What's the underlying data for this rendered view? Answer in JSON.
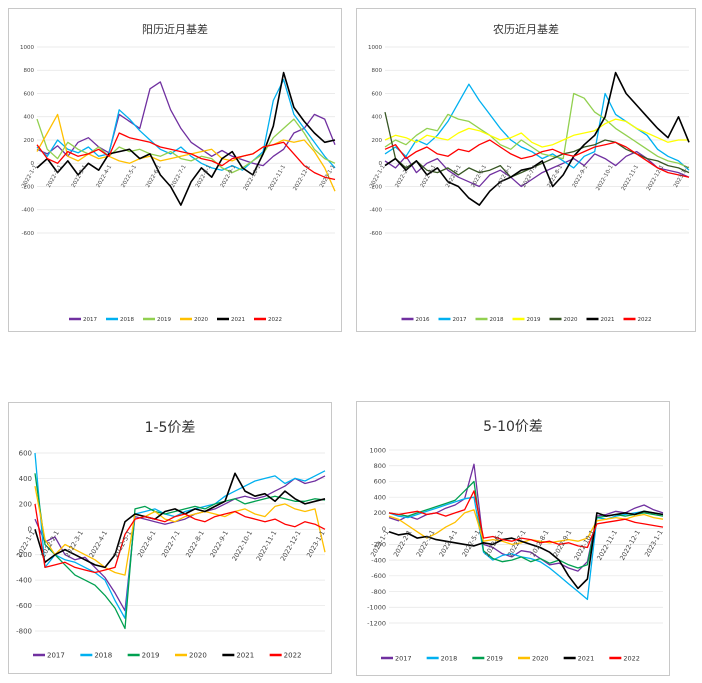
{
  "chart_data": [
    {
      "type": "line",
      "title": "阳历近月基差",
      "x_tick_labels": [
        "2022-1-1",
        "2022-2-1",
        "2022-3-1",
        "2022-4-1",
        "2022-5-1",
        "2022-6-1",
        "2022-7-1",
        "2022-8-1",
        "2022-9-1",
        "2022-10-1",
        "2022-11-1",
        "2022-12-1",
        "2023-1-1"
      ],
      "ylim": [
        -600,
        1000
      ],
      "y_ticks": [
        -600,
        -400,
        -200,
        0,
        200,
        400,
        600,
        800,
        1000
      ],
      "legend_position": "bottom",
      "series": [
        {
          "name": "2017",
          "color": "#7030a0",
          "values": [
            120,
            80,
            150,
            60,
            180,
            220,
            140,
            90,
            420,
            360,
            300,
            640,
            700,
            460,
            300,
            180,
            120,
            60,
            110,
            60,
            30,
            0,
            -20,
            60,
            120,
            260,
            300,
            420,
            380,
            160
          ]
        },
        {
          "name": "2018",
          "color": "#00b0f0",
          "values": [
            140,
            60,
            200,
            120,
            90,
            140,
            60,
            80,
            460,
            380,
            280,
            200,
            120,
            80,
            140,
            60,
            0,
            -40,
            -60,
            -20,
            -60,
            20,
            100,
            540,
            720,
            420,
            300,
            180,
            60,
            -40
          ]
        },
        {
          "name": "2019",
          "color": "#92d050",
          "values": [
            380,
            120,
            40,
            180,
            120,
            80,
            140,
            60,
            140,
            100,
            120,
            80,
            60,
            100,
            40,
            20,
            60,
            40,
            -40,
            -80,
            -40,
            20,
            80,
            220,
            300,
            380,
            260,
            120,
            40,
            0
          ]
        },
        {
          "name": "2020",
          "color": "#ffc000",
          "values": [
            100,
            260,
            420,
            60,
            20,
            80,
            40,
            60,
            20,
            0,
            40,
            60,
            20,
            40,
            60,
            80,
            100,
            120,
            40,
            20,
            60,
            80,
            140,
            160,
            200,
            180,
            200,
            100,
            -40,
            -240
          ]
        },
        {
          "name": "2021",
          "color": "#000000",
          "values": [
            -40,
            40,
            -80,
            20,
            -100,
            0,
            -60,
            80,
            100,
            120,
            40,
            80,
            -100,
            -200,
            -360,
            -160,
            -40,
            -120,
            40,
            100,
            -40,
            -100,
            80,
            320,
            780,
            480,
            360,
            260,
            180,
            200
          ]
        },
        {
          "name": "2022",
          "color": "#ff0000",
          "values": [
            160,
            40,
            0,
            100,
            60,
            80,
            120,
            60,
            260,
            220,
            200,
            180,
            140,
            120,
            100,
            80,
            40,
            20,
            -20,
            40,
            60,
            80,
            140,
            160,
            180,
            80,
            -20,
            -80,
            -120,
            -140
          ]
        }
      ]
    },
    {
      "type": "line",
      "title": "农历近月基差",
      "x_tick_labels": [
        "2022-1-1",
        "2022-2-1",
        "2022-3-1",
        "2022-4-1",
        "2022-5-1",
        "2022-6-1",
        "2022-7-1",
        "2022-8-1",
        "2022-9-1",
        "2022-10-1",
        "2022-11-1",
        "2022-12-1",
        "2023-1-1"
      ],
      "ylim": [
        -600,
        1000
      ],
      "y_ticks": [
        -600,
        -400,
        -200,
        0,
        200,
        400,
        600,
        800,
        1000
      ],
      "legend_position": "bottom",
      "series": [
        {
          "name": "2016",
          "color": "#7030a0",
          "values": [
            20,
            -40,
            60,
            -80,
            0,
            40,
            -60,
            -120,
            -160,
            -200,
            -100,
            -60,
            -120,
            -200,
            -140,
            -80,
            -40,
            0,
            40,
            -20,
            80,
            40,
            -20,
            60,
            100,
            40,
            -40,
            -60,
            -80,
            -120
          ]
        },
        {
          "name": "2017",
          "color": "#00b0f0",
          "values": [
            80,
            140,
            60,
            200,
            160,
            240,
            360,
            520,
            680,
            540,
            420,
            300,
            200,
            140,
            100,
            40,
            80,
            20,
            -40,
            60,
            100,
            600,
            420,
            360,
            300,
            240,
            120,
            60,
            20,
            -60
          ]
        },
        {
          "name": "2018",
          "color": "#92d050",
          "values": [
            140,
            200,
            160,
            240,
            300,
            280,
            420,
            380,
            360,
            300,
            240,
            160,
            120,
            200,
            140,
            80,
            60,
            40,
            600,
            560,
            440,
            380,
            300,
            240,
            180,
            120,
            60,
            20,
            0,
            -40
          ]
        },
        {
          "name": "2019",
          "color": "#ffff00",
          "values": [
            200,
            240,
            220,
            180,
            240,
            220,
            200,
            260,
            300,
            280,
            240,
            200,
            220,
            260,
            180,
            140,
            160,
            200,
            240,
            260,
            280,
            340,
            380,
            360,
            300,
            260,
            220,
            180,
            200,
            200
          ]
        },
        {
          "name": "2020",
          "color": "#375623",
          "values": [
            440,
            40,
            -40,
            20,
            -60,
            -80,
            -40,
            -100,
            -40,
            -80,
            -60,
            -20,
            -120,
            -80,
            -40,
            0,
            40,
            80,
            100,
            140,
            160,
            200,
            180,
            120,
            80,
            40,
            20,
            -20,
            -40,
            -80
          ]
        },
        {
          "name": "2021",
          "color": "#000000",
          "values": [
            -20,
            40,
            -60,
            20,
            -100,
            -40,
            -160,
            -200,
            -300,
            -360,
            -240,
            -160,
            -120,
            -60,
            -40,
            20,
            -200,
            -100,
            60,
            160,
            240,
            400,
            780,
            600,
            500,
            400,
            300,
            220,
            400,
            180
          ]
        },
        {
          "name": "2022",
          "color": "#ff0000",
          "values": [
            120,
            160,
            40,
            100,
            140,
            80,
            60,
            120,
            100,
            160,
            200,
            140,
            80,
            40,
            60,
            100,
            120,
            80,
            60,
            100,
            140,
            160,
            180,
            140,
            80,
            20,
            -40,
            -80,
            -100,
            -120
          ]
        }
      ]
    },
    {
      "type": "line",
      "title": "1-5价差",
      "x_tick_labels": [
        "2022-1-1",
        "2022-2-1",
        "2022-3-1",
        "2022-4-1",
        "2022-5-1",
        "2022-6-1",
        "2022-7-1",
        "2022-8-1",
        "2022-9-1",
        "2022-10-1",
        "2022-11-1",
        "2022-12-1",
        "2023-1-1"
      ],
      "ylim": [
        -800,
        600
      ],
      "y_ticks": [
        -800,
        -600,
        -400,
        -200,
        0,
        200,
        400,
        600
      ],
      "legend_position": "bottom",
      "series": [
        {
          "name": "2017",
          "color": "#7030a0",
          "values": [
            80,
            -100,
            -60,
            -200,
            -240,
            -220,
            -300,
            -380,
            -500,
            -640,
            100,
            80,
            60,
            40,
            60,
            80,
            120,
            140,
            160,
            200,
            240,
            260,
            240,
            260,
            300,
            340,
            400,
            360,
            380,
            420
          ]
        },
        {
          "name": "2018",
          "color": "#00b0f0",
          "values": [
            600,
            -300,
            -200,
            -240,
            -260,
            -300,
            -340,
            -400,
            -560,
            -700,
            120,
            140,
            160,
            120,
            100,
            140,
            160,
            180,
            200,
            260,
            300,
            340,
            380,
            400,
            420,
            360,
            400,
            380,
            420,
            460
          ]
        },
        {
          "name": "2019",
          "color": "#00a050",
          "values": [
            440,
            -120,
            -200,
            -280,
            -360,
            -400,
            -440,
            -520,
            -620,
            -780,
            160,
            180,
            140,
            120,
            140,
            160,
            180,
            160,
            200,
            220,
            240,
            200,
            220,
            240,
            260,
            240,
            220,
            220,
            240,
            230
          ]
        },
        {
          "name": "2020",
          "color": "#ffc000",
          "values": [
            340,
            -80,
            -200,
            -120,
            -160,
            -200,
            -240,
            -300,
            -340,
            -360,
            120,
            100,
            140,
            80,
            60,
            100,
            120,
            140,
            120,
            100,
            140,
            160,
            120,
            100,
            180,
            200,
            160,
            140,
            160,
            -180
          ]
        },
        {
          "name": "2021",
          "color": "#000000",
          "values": [
            0,
            -260,
            -200,
            -160,
            -200,
            -240,
            -280,
            -300,
            -200,
            60,
            120,
            100,
            80,
            140,
            160,
            120,
            160,
            140,
            180,
            220,
            440,
            300,
            260,
            280,
            220,
            300,
            240,
            200,
            220,
            240
          ]
        },
        {
          "name": "2022",
          "color": "#ff0000",
          "values": [
            200,
            -300,
            -280,
            -260,
            -300,
            -320,
            -340,
            -320,
            -300,
            -40,
            80,
            100,
            80,
            60,
            100,
            120,
            80,
            60,
            100,
            120,
            140,
            100,
            80,
            60,
            80,
            40,
            20,
            60,
            40,
            0
          ]
        }
      ]
    },
    {
      "type": "line",
      "title": "5-10价差",
      "x_tick_labels": [
        "2022-1-1",
        "2022-2-1",
        "2022-3-1",
        "2022-4-1",
        "2022-5-1",
        "2022-6-1",
        "2022-7-1",
        "2022-8-1",
        "2022-9-1",
        "2022-10-1",
        "2022-11-1",
        "2022-12-1",
        "2023-1-1"
      ],
      "ylim": [
        -1200,
        1000
      ],
      "y_ticks": [
        -1200,
        -1000,
        -800,
        -600,
        -400,
        -200,
        0,
        200,
        400,
        600,
        800,
        1000
      ],
      "legend_position": "bottom",
      "series": [
        {
          "name": "2017",
          "color": "#7030a0",
          "values": [
            140,
            100,
            160,
            120,
            180,
            200,
            260,
            300,
            380,
            820,
            -200,
            -240,
            -320,
            -360,
            -280,
            -300,
            -380,
            -460,
            -440,
            -500,
            -540,
            -420,
            160,
            180,
            220,
            200,
            260,
            300,
            240,
            200
          ]
        },
        {
          "name": "2018",
          "color": "#00b0f0",
          "values": [
            200,
            160,
            140,
            180,
            220,
            260,
            300,
            340,
            380,
            400,
            -300,
            -400,
            -340,
            -320,
            -360,
            -380,
            -420,
            -500,
            -600,
            -700,
            -800,
            -900,
            140,
            120,
            160,
            180,
            200,
            220,
            200,
            180
          ]
        },
        {
          "name": "2019",
          "color": "#00a050",
          "values": [
            200,
            180,
            160,
            200,
            240,
            280,
            320,
            360,
            480,
            600,
            -280,
            -380,
            -420,
            -400,
            -360,
            -420,
            -380,
            -440,
            -400,
            -460,
            -500,
            -460,
            140,
            160,
            180,
            160,
            180,
            200,
            180,
            160
          ]
        },
        {
          "name": "2020",
          "color": "#ffc000",
          "values": [
            160,
            120,
            40,
            -40,
            -120,
            -60,
            20,
            80,
            200,
            240,
            -160,
            -140,
            -160,
            -200,
            -180,
            -140,
            -160,
            -180,
            -160,
            -140,
            -160,
            -120,
            100,
            120,
            140,
            120,
            160,
            180,
            140,
            120
          ]
        },
        {
          "name": "2021",
          "color": "#000000",
          "values": [
            -40,
            -80,
            -60,
            -120,
            -100,
            -140,
            -160,
            -180,
            -200,
            -220,
            -180,
            -200,
            -140,
            -120,
            -160,
            -200,
            -240,
            -300,
            -400,
            -600,
            -760,
            -640,
            200,
            160,
            180,
            200,
            180,
            220,
            200,
            180
          ]
        },
        {
          "name": "2022",
          "color": "#ff0000",
          "values": [
            200,
            180,
            200,
            220,
            180,
            200,
            160,
            200,
            240,
            480,
            -120,
            -100,
            -140,
            -160,
            -120,
            -140,
            -180,
            -160,
            -200,
            -180,
            -220,
            -240,
            60,
            80,
            100,
            120,
            80,
            60,
            40,
            20
          ]
        }
      ]
    }
  ]
}
